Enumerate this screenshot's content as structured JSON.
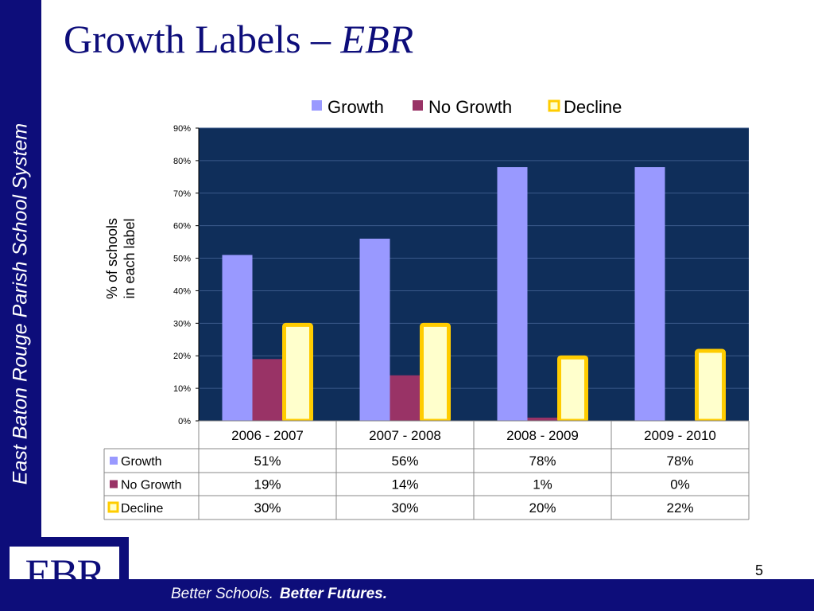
{
  "sidebar": {
    "text": "East Baton Rouge Parish School System"
  },
  "slide": {
    "title": "Growth Labels – ",
    "title_italic": "EBR",
    "page_number": "5"
  },
  "footer": {
    "tagline_a": "Better Schools.",
    "tagline_b": "Better Futures."
  },
  "logo": {
    "text": "EBR",
    "bg": "#0d0d7a"
  },
  "colors": {
    "navy": "#0d0d7a",
    "plot_bg": "#0f2e5a",
    "growth": "#9999ff",
    "no_growth": "#993366",
    "decline_fill": "#ffffcc",
    "decline_border": "#ffcc00"
  },
  "chart_data": {
    "type": "bar",
    "ylabel_line1": "% of schools",
    "ylabel_line2": "in each label",
    "ylim": [
      0,
      90
    ],
    "yticks": [
      "0%",
      "10%",
      "20%",
      "30%",
      "40%",
      "50%",
      "60%",
      "70%",
      "80%",
      "90%"
    ],
    "grid": true,
    "legend_position": "top",
    "categories": [
      "2006 - 2007",
      "2007 - 2008",
      "2008 - 2009",
      "2009 - 2010"
    ],
    "series": [
      {
        "name": "Growth",
        "values": [
          51,
          56,
          78,
          78
        ],
        "labels": [
          "51%",
          "56%",
          "78%",
          "78%"
        ]
      },
      {
        "name": "No Growth",
        "values": [
          19,
          14,
          1,
          0
        ],
        "labels": [
          "19%",
          "14%",
          "1%",
          "0%"
        ]
      },
      {
        "name": "Decline",
        "values": [
          30,
          30,
          20,
          22
        ],
        "labels": [
          "30%",
          "30%",
          "20%",
          "22%"
        ]
      }
    ]
  }
}
